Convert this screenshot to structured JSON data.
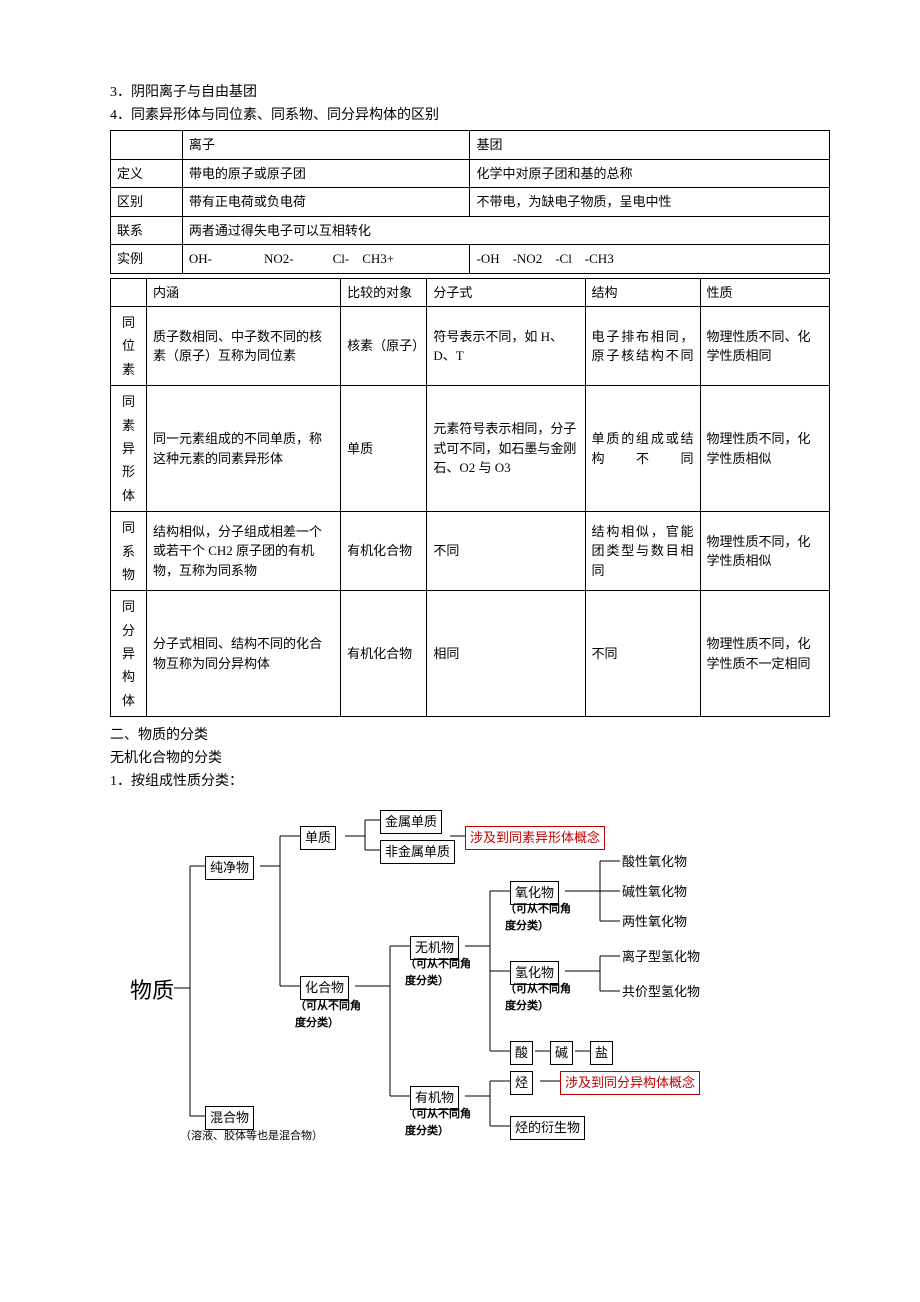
{
  "colors": {
    "text": "#000000",
    "bg": "#ffffff",
    "accent_red": "#c00000"
  },
  "heading3": "3．阴阳离子与自由基团",
  "heading4": "4．同素异形体与同位素、同系物、同分异构体的区别",
  "table1": {
    "h_ion": "离子",
    "h_group": "基团",
    "r_def": "定义",
    "def_ion": "带电的原子或原子团",
    "def_group": "化学中对原子团和基的总称",
    "r_diff": "区别",
    "diff_ion": "带有正电荷或负电荷",
    "diff_group": "不带电，为缺电子物质，呈电中性",
    "r_rel": "联系",
    "rel_val": "两者通过得失电子可以互相转化",
    "r_ex": "实例",
    "ex_ion": "OH-    NO2-   Cl- CH3+",
    "ex_group": "-OH -NO2 -Cl -CH3"
  },
  "table2": {
    "h_conn": "内涵",
    "h_obj": "比较的对象",
    "h_formula": "分子式",
    "h_struct": "结构",
    "h_prop": "性质",
    "rows": [
      {
        "name": "同位素",
        "conn": "质子数相同、中子数不同的核素（原子）互称为同位素",
        "obj": "核素（原子）",
        "formula": "符号表示不同，如 H、D、T",
        "struct": "电子排布相同，原子核结构不同",
        "prop": "物理性质不同、化学性质相同"
      },
      {
        "name": "同素异形体",
        "conn": "同一元素组成的不同单质，称这种元素的同素异形体",
        "obj": "单质",
        "formula": "元素符号表示相同，分子式可不同，如石墨与金刚石、O2 与 O3",
        "struct": "单质的组成或结构不同",
        "prop": "物理性质不同，化学性质相似"
      },
      {
        "name": "同系物",
        "conn": "结构相似，分子组成相差一个或若干个 CH2 原子团的有机物，互称为同系物",
        "obj": "有机化合物",
        "formula": "不同",
        "struct": "结构相似，官能团类型与数目相同",
        "prop": "物理性质不同，化学性质相似"
      },
      {
        "name": "同分异构体",
        "conn": "分子式相同、结构不同的化合物互称为同分异构体",
        "obj": "有机化合物",
        "formula": "相同",
        "struct": "不同",
        "prop": "物理性质不同，化学性质不一定相同"
      }
    ]
  },
  "sec2_title": "二、物质的分类",
  "sec2_sub": "无机化合物的分类",
  "sec2_item1": "1．按组成性质分类：",
  "diagram": {
    "root": "物质",
    "n_pure": "纯净物",
    "n_mix": "混合物",
    "mix_note": "（溶液、胶体等也是混合物）",
    "n_simple": "单质",
    "n_compound": "化合物",
    "note_compound": "（可从不同角度分类）",
    "n_metal": "金属单质",
    "n_nonmetal": "非金属单质",
    "red1": "涉及到同素异形体概念",
    "n_inorg": "无机物",
    "note_inorg": "（可从不同角度分类）",
    "n_org": "有机物",
    "note_org": "（可从不同角度分类）",
    "n_oxide": "氧化物",
    "note_oxide": "（可从不同角度分类）",
    "ox1": "酸性氧化物",
    "ox2": "碱性氧化物",
    "ox3": "两性氧化物",
    "n_hydride": "氢化物",
    "note_hydride": "（可从不同角度分类）",
    "h1": "离子型氢化物",
    "h2": "共价型氢化物",
    "n_acid": "酸",
    "n_base": "碱",
    "n_salt": "盐",
    "n_hydroc": "烃",
    "red2": "涉及到同分异构体概念",
    "n_deriv": "烃的衍生物"
  }
}
